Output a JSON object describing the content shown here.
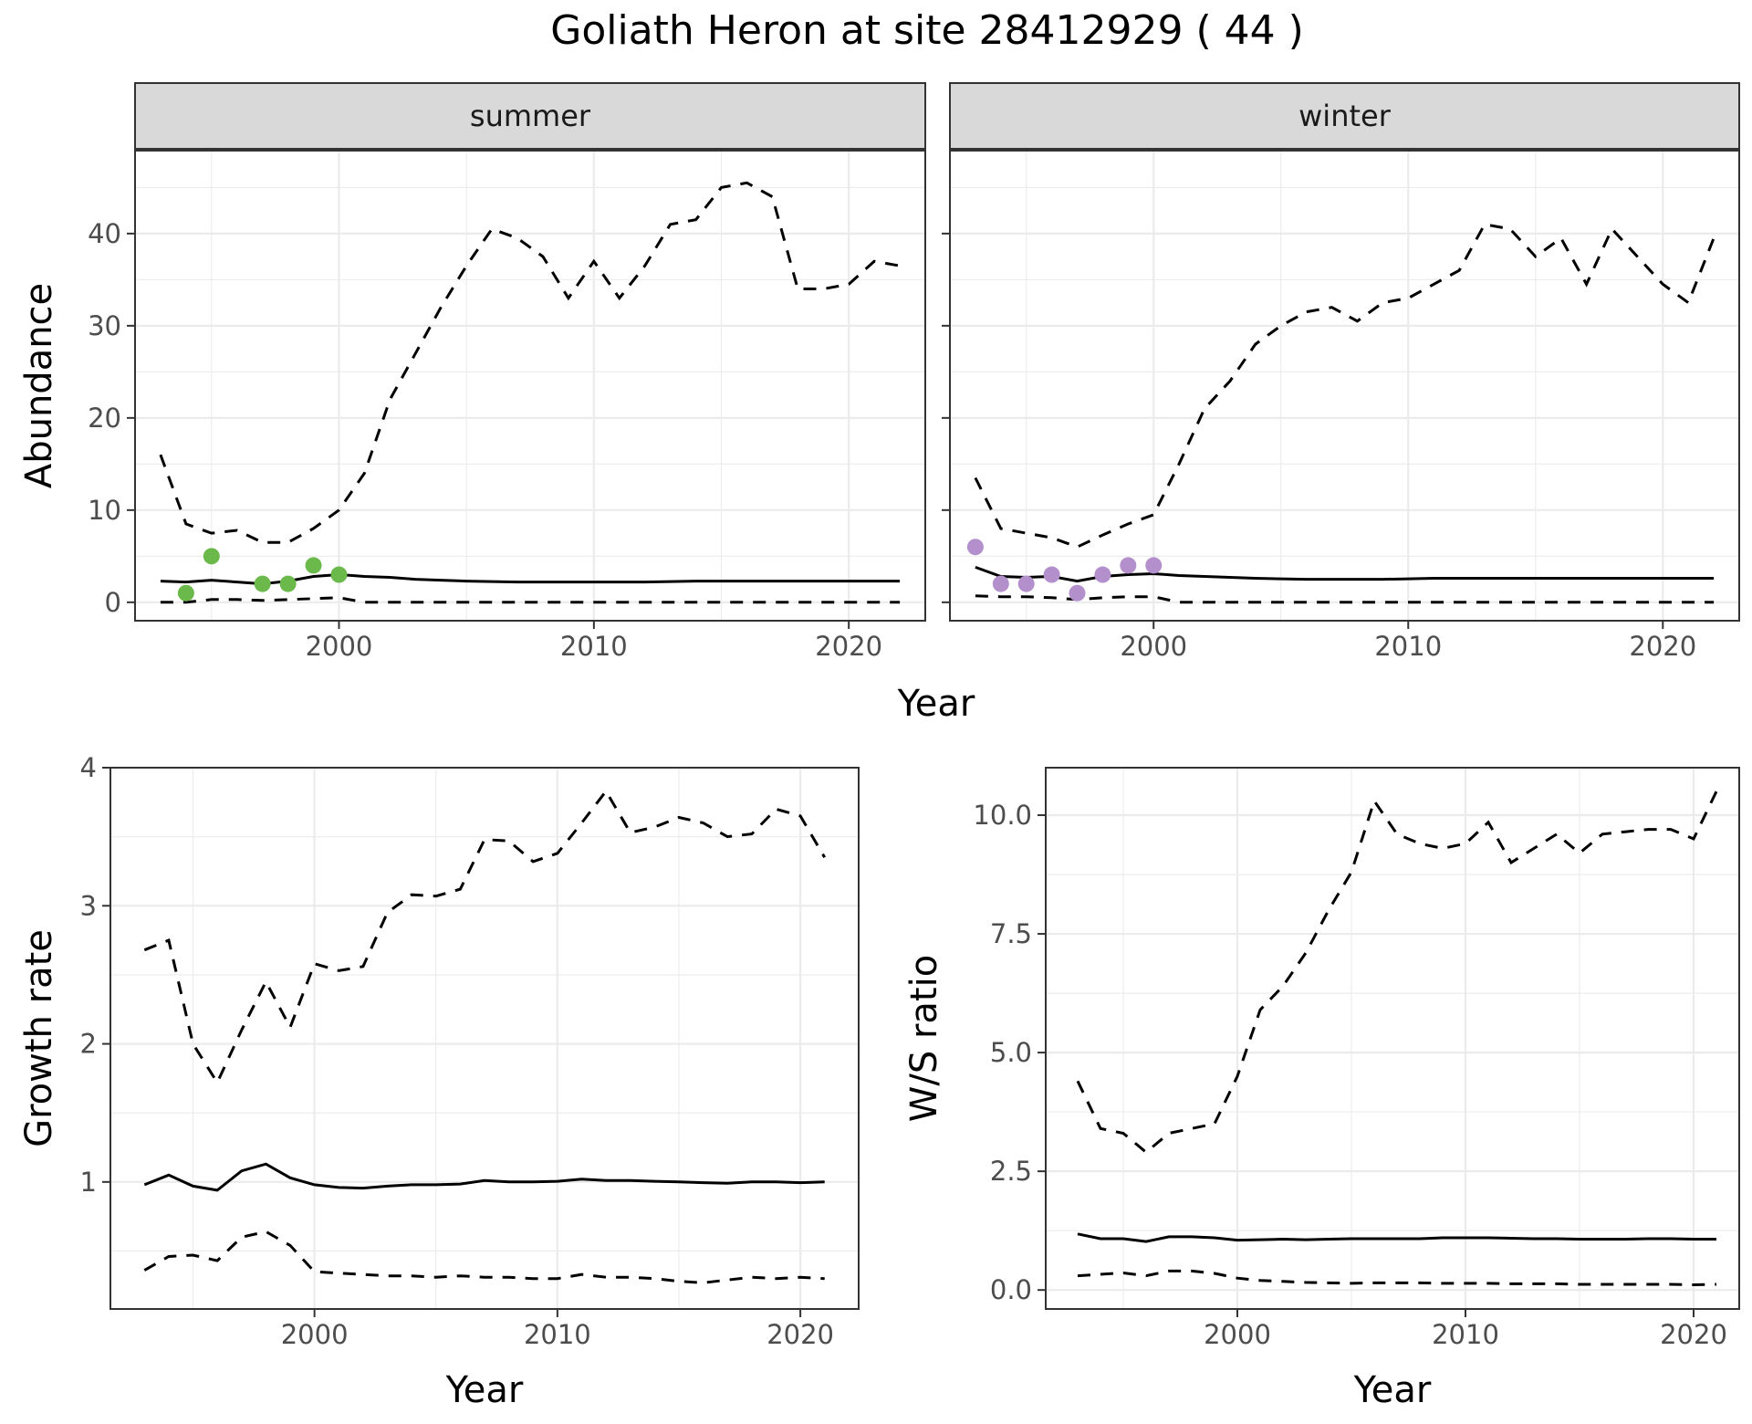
{
  "figure": {
    "title": "Goliath Heron at site 28412929 ( 44 )"
  },
  "colors": {
    "summer_points": "#6ab94a",
    "winter_points": "#b38fcc",
    "lines": "#000000",
    "strip": "#d9d9d9"
  },
  "chart_data": [
    {
      "id": "abundance-summer",
      "type": "line",
      "facet": "summer",
      "xlabel": "",
      "ylabel": "Abundance",
      "xlim": [
        1992,
        2023
      ],
      "ylim": [
        -2,
        49
      ],
      "xticks": [
        2000,
        2010,
        2020
      ],
      "xtick_labels": [
        "2000",
        "2010",
        "2020"
      ],
      "yticks": [
        0,
        10,
        20,
        30,
        40
      ],
      "ytick_labels": [
        "0",
        "10",
        "20",
        "30",
        "40"
      ],
      "x": [
        1993,
        1994,
        1995,
        1996,
        1997,
        1998,
        1999,
        2000,
        2001,
        2002,
        2003,
        2004,
        2005,
        2006,
        2007,
        2008,
        2009,
        2010,
        2011,
        2012,
        2013,
        2014,
        2015,
        2016,
        2017,
        2018,
        2019,
        2020,
        2021,
        2022
      ],
      "series": [
        {
          "role": "upper",
          "values": [
            16,
            8.5,
            7.5,
            7.8,
            6.5,
            6.5,
            8,
            10,
            14,
            22,
            27,
            32,
            36.5,
            40.5,
            39.5,
            37.5,
            33,
            37,
            33,
            36.5,
            41,
            41.5,
            45,
            45.5,
            44,
            34,
            34,
            34.5,
            37,
            36.5
          ]
        },
        {
          "role": "mean",
          "values": [
            2.3,
            2.2,
            2.4,
            2.2,
            2,
            2.3,
            2.8,
            3,
            2.8,
            2.7,
            2.5,
            2.4,
            2.3,
            2.25,
            2.2,
            2.2,
            2.2,
            2.2,
            2.2,
            2.2,
            2.25,
            2.3,
            2.3,
            2.3,
            2.3,
            2.3,
            2.3,
            2.3,
            2.3,
            2.3
          ]
        },
        {
          "role": "lower",
          "values": [
            0,
            0,
            0.3,
            0.3,
            0.2,
            0.3,
            0.4,
            0.5,
            0,
            0,
            0,
            0,
            0,
            0,
            0,
            0,
            0,
            0,
            0,
            0,
            0,
            0,
            0,
            0,
            0,
            0,
            0,
            0,
            0,
            0
          ]
        }
      ],
      "points": {
        "x": [
          1994,
          1995,
          1997,
          1998,
          1999,
          2000
        ],
        "y": [
          1,
          5,
          2,
          2,
          4,
          3
        ]
      }
    },
    {
      "id": "abundance-winter",
      "type": "line",
      "facet": "winter",
      "xlabel": "",
      "ylabel": "",
      "xlim": [
        1992,
        2023
      ],
      "ylim": [
        -2,
        49
      ],
      "xticks": [
        2000,
        2010,
        2020
      ],
      "xtick_labels": [
        "2000",
        "2010",
        "2020"
      ],
      "yticks": [
        0,
        10,
        20,
        30,
        40
      ],
      "x": [
        1993,
        1994,
        1995,
        1996,
        1997,
        1998,
        1999,
        2000,
        2001,
        2002,
        2003,
        2004,
        2005,
        2006,
        2007,
        2008,
        2009,
        2010,
        2011,
        2012,
        2013,
        2014,
        2015,
        2016,
        2017,
        2018,
        2019,
        2020,
        2021,
        2022
      ],
      "series": [
        {
          "role": "upper",
          "values": [
            13.5,
            8,
            7.5,
            7,
            6,
            7.3,
            8.5,
            9.5,
            15,
            21,
            24,
            28,
            30,
            31.5,
            32,
            30.5,
            32.5,
            33,
            34.5,
            36,
            41,
            40.5,
            37.5,
            39.5,
            34.5,
            40.5,
            37.5,
            34.5,
            32.5,
            39.5
          ]
        },
        {
          "role": "mean",
          "values": [
            3.8,
            2.8,
            2.7,
            2.8,
            2.3,
            2.8,
            3,
            3.1,
            2.9,
            2.8,
            2.7,
            2.6,
            2.55,
            2.5,
            2.5,
            2.5,
            2.5,
            2.55,
            2.6,
            2.6,
            2.6,
            2.6,
            2.6,
            2.6,
            2.6,
            2.6,
            2.6,
            2.6,
            2.6,
            2.6
          ]
        },
        {
          "role": "lower",
          "values": [
            0.7,
            0.6,
            0.6,
            0.5,
            0.3,
            0.5,
            0.6,
            0.6,
            0,
            0,
            0,
            0,
            0,
            0,
            0,
            0,
            0,
            0,
            0,
            0,
            0,
            0,
            0,
            0,
            0,
            0,
            0,
            0,
            0,
            0
          ]
        }
      ],
      "points": {
        "x": [
          1993,
          1994,
          1995,
          1996,
          1997,
          1998,
          1999,
          2000
        ],
        "y": [
          6,
          2,
          2,
          3,
          1,
          3,
          4,
          4
        ]
      }
    },
    {
      "id": "growth-rate",
      "type": "line",
      "xlabel": "Year",
      "ylabel": "Growth rate",
      "xlim": [
        1991.6,
        2022.4
      ],
      "ylim": [
        0.08,
        4.0
      ],
      "xticks": [
        2000,
        2010,
        2020
      ],
      "xtick_labels": [
        "2000",
        "2010",
        "2020"
      ],
      "yticks": [
        1,
        2,
        3,
        4
      ],
      "ytick_labels": [
        "1",
        "2",
        "3",
        "4"
      ],
      "x": [
        1993,
        1994,
        1995,
        1996,
        1997,
        1998,
        1999,
        2000,
        2001,
        2002,
        2003,
        2004,
        2005,
        2006,
        2007,
        2008,
        2009,
        2010,
        2011,
        2012,
        2013,
        2014,
        2015,
        2016,
        2017,
        2018,
        2019,
        2020,
        2021
      ],
      "series": [
        {
          "role": "upper",
          "values": [
            2.68,
            2.75,
            2.0,
            1.72,
            2.1,
            2.45,
            2.12,
            2.58,
            2.53,
            2.56,
            2.95,
            3.08,
            3.07,
            3.12,
            3.48,
            3.47,
            3.32,
            3.38,
            3.6,
            3.83,
            3.53,
            3.57,
            3.64,
            3.6,
            3.5,
            3.52,
            3.7,
            3.65,
            3.35
          ]
        },
        {
          "role": "mean",
          "values": [
            0.98,
            1.05,
            0.97,
            0.94,
            1.08,
            1.13,
            1.03,
            0.98,
            0.96,
            0.955,
            0.97,
            0.98,
            0.98,
            0.985,
            1.01,
            1.0,
            1.0,
            1.005,
            1.02,
            1.01,
            1.01,
            1.005,
            1.0,
            0.995,
            0.99,
            1.0,
            1.0,
            0.995,
            1.0
          ]
        },
        {
          "role": "lower",
          "values": [
            0.36,
            0.46,
            0.47,
            0.43,
            0.6,
            0.64,
            0.54,
            0.35,
            0.34,
            0.33,
            0.32,
            0.32,
            0.31,
            0.32,
            0.31,
            0.31,
            0.3,
            0.3,
            0.33,
            0.31,
            0.31,
            0.3,
            0.28,
            0.27,
            0.29,
            0.31,
            0.3,
            0.31,
            0.3
          ]
        }
      ]
    },
    {
      "id": "ws-ratio",
      "type": "line",
      "xlabel": "Year",
      "ylabel": "W/S ratio",
      "xlim": [
        1991.6,
        2022.0
      ],
      "ylim": [
        -0.4,
        11.0
      ],
      "xticks": [
        2000,
        2010,
        2020
      ],
      "xtick_labels": [
        "2000",
        "2010",
        "2020"
      ],
      "yticks": [
        0,
        2.5,
        5,
        7.5,
        10
      ],
      "ytick_labels": [
        "0.0",
        "2.5",
        "5.0",
        "7.5",
        "10.0"
      ],
      "x": [
        1993,
        1994,
        1995,
        1996,
        1997,
        1998,
        1999,
        2000,
        2001,
        2002,
        2003,
        2004,
        2005,
        2006,
        2007,
        2008,
        2009,
        2010,
        2011,
        2012,
        2013,
        2014,
        2015,
        2016,
        2017,
        2018,
        2019,
        2020,
        2021
      ],
      "series": [
        {
          "role": "upper",
          "values": [
            4.4,
            3.4,
            3.3,
            2.9,
            3.3,
            3.4,
            3.5,
            4.5,
            5.9,
            6.4,
            7.1,
            8.0,
            8.8,
            10.3,
            9.6,
            9.4,
            9.3,
            9.4,
            9.85,
            9.0,
            9.3,
            9.6,
            9.2,
            9.6,
            9.65,
            9.7,
            9.7,
            9.5,
            10.5
          ]
        },
        {
          "role": "mean",
          "values": [
            1.18,
            1.08,
            1.08,
            1.02,
            1.12,
            1.12,
            1.1,
            1.05,
            1.06,
            1.07,
            1.06,
            1.07,
            1.08,
            1.08,
            1.08,
            1.08,
            1.1,
            1.1,
            1.1,
            1.09,
            1.08,
            1.08,
            1.07,
            1.07,
            1.07,
            1.08,
            1.08,
            1.07,
            1.07
          ]
        },
        {
          "role": "lower",
          "values": [
            0.3,
            0.33,
            0.36,
            0.3,
            0.4,
            0.4,
            0.35,
            0.25,
            0.2,
            0.18,
            0.16,
            0.15,
            0.14,
            0.15,
            0.15,
            0.15,
            0.14,
            0.14,
            0.14,
            0.13,
            0.13,
            0.13,
            0.12,
            0.12,
            0.12,
            0.12,
            0.12,
            0.11,
            0.12
          ]
        }
      ]
    }
  ],
  "shared_labels": {
    "top_xlabel": "Year"
  }
}
